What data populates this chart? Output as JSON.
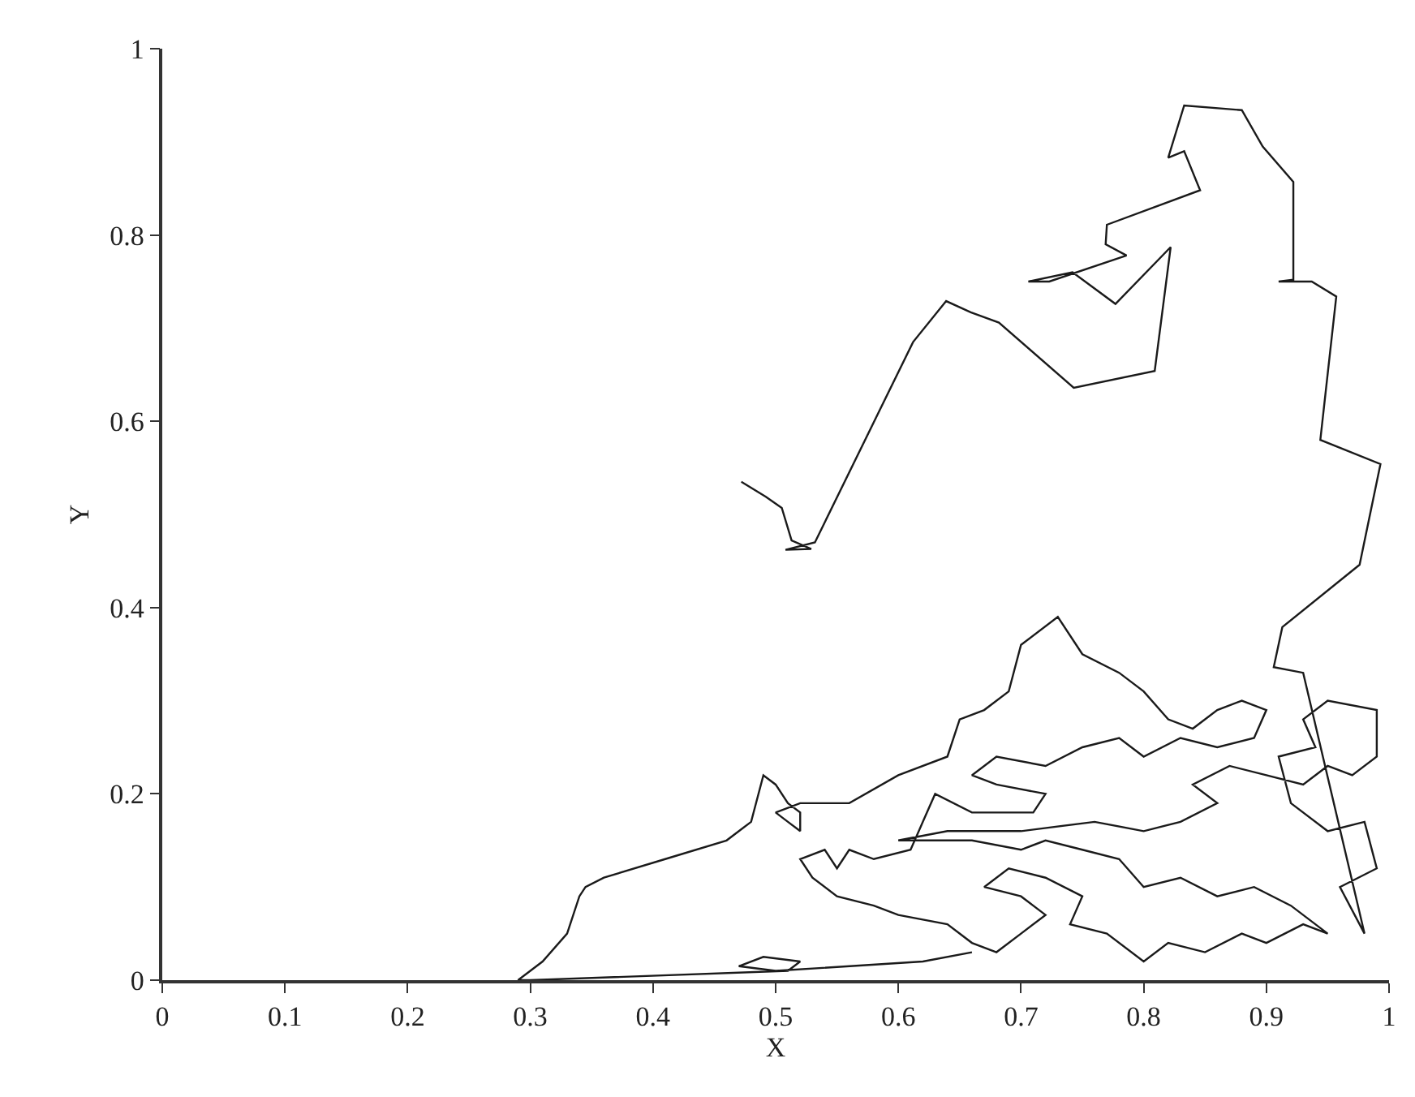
{
  "chart_data": {
    "type": "line",
    "xlabel": "X",
    "ylabel": "Y",
    "xlim": [
      0,
      1
    ],
    "ylim": [
      0,
      1
    ],
    "xticks": [
      0,
      0.1,
      0.2,
      0.3,
      0.4,
      0.5,
      0.6,
      0.7,
      0.8,
      0.9,
      1
    ],
    "yticks": [
      0,
      0.2,
      0.4,
      0.6,
      0.8,
      1
    ],
    "marker": "none",
    "line_style": "solid",
    "series": [
      {
        "color": "#1a1a1a",
        "x": [
          0.66,
          0.62,
          0.5,
          0.47,
          0.49,
          0.52,
          0.51,
          0.3,
          0.29,
          0.31,
          0.33,
          0.34,
          0.345,
          0.36,
          0.41,
          0.46,
          0.48,
          0.49,
          0.5,
          0.51,
          0.52,
          0.52,
          0.51,
          0.5,
          0.52,
          0.56,
          0.6,
          0.64,
          0.65,
          0.67,
          0.69,
          0.7,
          0.73,
          0.75,
          0.78,
          0.8,
          0.82,
          0.84,
          0.86,
          0.88,
          0.9,
          0.89,
          0.86,
          0.83,
          0.8,
          0.78,
          0.75,
          0.72,
          0.68,
          0.66,
          0.68,
          0.72,
          0.71,
          0.66,
          0.63,
          0.62,
          0.61,
          0.58,
          0.56,
          0.55,
          0.54,
          0.52,
          0.53,
          0.55,
          0.58,
          0.6,
          0.64,
          0.66,
          0.68,
          0.7,
          0.72,
          0.7,
          0.67,
          0.69,
          0.72,
          0.75,
          0.74,
          0.77,
          0.8,
          0.82,
          0.85,
          0.88,
          0.9,
          0.93,
          0.95,
          0.92,
          0.89,
          0.86,
          0.83,
          0.8,
          0.78,
          0.75,
          0.72,
          0.7,
          0.66,
          0.6,
          0.64,
          0.7,
          0.76,
          0.8,
          0.83,
          0.86,
          0.84,
          0.87,
          0.9,
          0.93,
          0.95,
          0.97,
          0.99,
          0.99,
          0.95,
          0.93,
          0.94,
          0.91,
          0.92,
          0.95,
          0.98,
          0.99,
          0.96,
          0.98,
          0.93,
          0.906,
          0.913,
          0.976,
          0.993,
          0.944,
          0.957,
          0.937,
          0.91,
          0.922,
          0.922,
          0.897,
          0.88,
          0.833,
          0.82,
          0.833,
          0.846,
          0.77,
          0.769,
          0.786,
          0.723,
          0.706,
          0.742,
          0.777,
          0.822,
          0.809,
          0.743,
          0.682,
          0.659,
          0.639,
          0.612,
          0.532,
          0.508,
          0.529,
          0.513,
          0.505,
          0.492,
          0.472
        ],
        "values": [
          0.03,
          0.02,
          0.01,
          0.015,
          0.025,
          0.02,
          0.01,
          0.0,
          0.0,
          0.02,
          0.05,
          0.09,
          0.1,
          0.11,
          0.13,
          0.15,
          0.17,
          0.22,
          0.21,
          0.19,
          0.18,
          0.16,
          0.17,
          0.18,
          0.19,
          0.19,
          0.22,
          0.24,
          0.28,
          0.29,
          0.31,
          0.36,
          0.39,
          0.35,
          0.33,
          0.31,
          0.28,
          0.27,
          0.29,
          0.3,
          0.29,
          0.26,
          0.25,
          0.26,
          0.24,
          0.26,
          0.25,
          0.23,
          0.24,
          0.22,
          0.21,
          0.2,
          0.18,
          0.18,
          0.2,
          0.17,
          0.14,
          0.13,
          0.14,
          0.12,
          0.14,
          0.13,
          0.11,
          0.09,
          0.08,
          0.07,
          0.06,
          0.04,
          0.03,
          0.05,
          0.07,
          0.09,
          0.1,
          0.12,
          0.11,
          0.09,
          0.06,
          0.05,
          0.02,
          0.04,
          0.03,
          0.05,
          0.04,
          0.06,
          0.05,
          0.08,
          0.1,
          0.09,
          0.11,
          0.1,
          0.13,
          0.14,
          0.15,
          0.14,
          0.15,
          0.15,
          0.16,
          0.16,
          0.17,
          0.16,
          0.17,
          0.19,
          0.21,
          0.23,
          0.22,
          0.21,
          0.23,
          0.22,
          0.24,
          0.29,
          0.3,
          0.28,
          0.25,
          0.24,
          0.19,
          0.16,
          0.17,
          0.12,
          0.1,
          0.05,
          0.33,
          0.336,
          0.379,
          0.446,
          0.554,
          0.58,
          0.734,
          0.75,
          0.75,
          0.752,
          0.857,
          0.895,
          0.934,
          0.939,
          0.883,
          0.89,
          0.848,
          0.811,
          0.79,
          0.778,
          0.75,
          0.75,
          0.76,
          0.726,
          0.787,
          0.654,
          0.636,
          0.706,
          0.717,
          0.729,
          0.685,
          0.47,
          0.462,
          0.463,
          0.472,
          0.507,
          0.519,
          0.535
        ]
      }
    ]
  }
}
